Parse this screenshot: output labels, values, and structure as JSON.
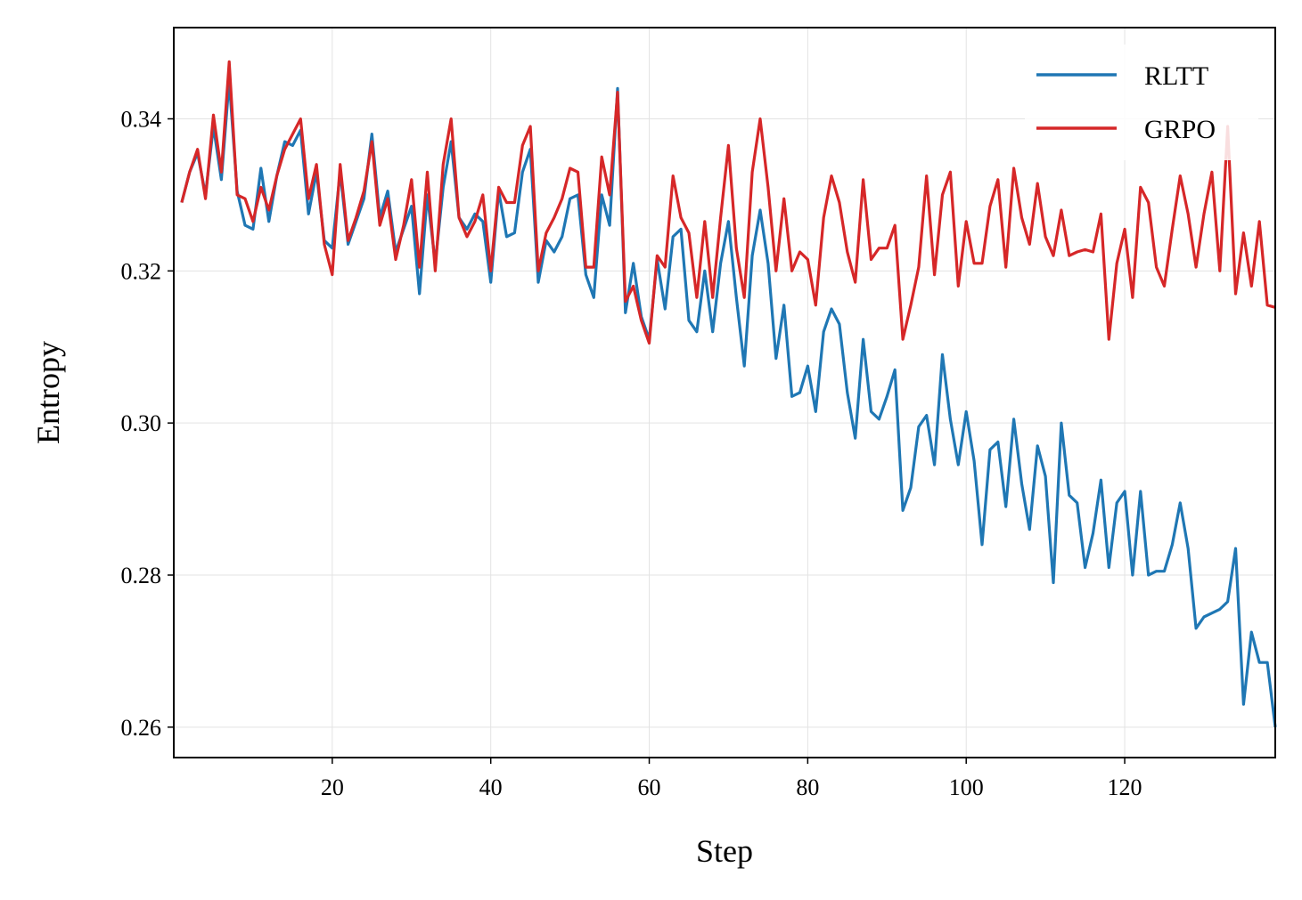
{
  "chart_data": {
    "type": "line",
    "title": "",
    "xlabel": "Step",
    "ylabel": "Entropy",
    "xlim": [
      0,
      139
    ],
    "ylim": [
      0.256,
      0.352
    ],
    "xticks": [
      20,
      40,
      60,
      80,
      100,
      120
    ],
    "xtick_labels": [
      "20",
      "40",
      "60",
      "80",
      "100",
      "120"
    ],
    "yticks": [
      0.26,
      0.28,
      0.3,
      0.32,
      0.34
    ],
    "ytick_labels": [
      "0.26",
      "0.28",
      "0.30",
      "0.32",
      "0.34"
    ],
    "grid": true,
    "legend": "top-right",
    "x_start": 1,
    "series": [
      {
        "name": "RLTT",
        "color": "#1f77b4",
        "values": [
          0.329,
          0.333,
          0.3355,
          0.33,
          0.339,
          0.332,
          0.345,
          0.3305,
          0.326,
          0.3255,
          0.3335,
          0.3265,
          0.3325,
          0.337,
          0.3365,
          0.3385,
          0.3275,
          0.333,
          0.324,
          0.323,
          0.333,
          0.3235,
          0.3265,
          0.3295,
          0.338,
          0.327,
          0.3305,
          0.3225,
          0.3255,
          0.3285,
          0.317,
          0.33,
          0.321,
          0.331,
          0.337,
          0.327,
          0.3255,
          0.3275,
          0.3265,
          0.3185,
          0.3305,
          0.3245,
          0.325,
          0.333,
          0.336,
          0.3185,
          0.324,
          0.3225,
          0.3245,
          0.3295,
          0.33,
          0.3195,
          0.3165,
          0.33,
          0.326,
          0.344,
          0.3145,
          0.321,
          0.314,
          0.311,
          0.3215,
          0.315,
          0.3245,
          0.3255,
          0.3135,
          0.312,
          0.32,
          0.312,
          0.321,
          0.3265,
          0.3165,
          0.3075,
          0.322,
          0.328,
          0.321,
          0.3085,
          0.3155,
          0.3035,
          0.304,
          0.3075,
          0.3015,
          0.312,
          0.315,
          0.313,
          0.304,
          0.298,
          0.311,
          0.3015,
          0.3005,
          0.3035,
          0.307,
          0.2885,
          0.2915,
          0.2995,
          0.301,
          0.2945,
          0.309,
          0.3005,
          0.2945,
          0.3015,
          0.295,
          0.284,
          0.2965,
          0.2975,
          0.289,
          0.3005,
          0.292,
          0.286,
          0.297,
          0.293,
          0.279,
          0.3,
          0.2905,
          0.2895,
          0.281,
          0.2855,
          0.2925,
          0.281,
          0.2895,
          0.291,
          0.28,
          0.291,
          0.28,
          0.2805,
          0.2805,
          0.284,
          0.2895,
          0.2835,
          0.273,
          0.2745,
          0.275,
          0.2755,
          0.2765,
          0.2835,
          0.263,
          0.2725,
          0.2685,
          0.2685,
          0.26
        ]
      },
      {
        "name": "GRPO",
        "color": "#d62728",
        "values": [
          0.329,
          0.333,
          0.336,
          0.3295,
          0.3405,
          0.333,
          0.3475,
          0.33,
          0.3295,
          0.3265,
          0.331,
          0.328,
          0.3325,
          0.336,
          0.338,
          0.34,
          0.3295,
          0.334,
          0.3235,
          0.3195,
          0.334,
          0.324,
          0.327,
          0.3305,
          0.337,
          0.326,
          0.3295,
          0.3215,
          0.326,
          0.332,
          0.3205,
          0.333,
          0.32,
          0.334,
          0.34,
          0.327,
          0.3245,
          0.3265,
          0.33,
          0.32,
          0.331,
          0.329,
          0.329,
          0.3365,
          0.339,
          0.32,
          0.325,
          0.327,
          0.3295,
          0.3335,
          0.333,
          0.3205,
          0.3205,
          0.335,
          0.33,
          0.3435,
          0.316,
          0.318,
          0.3135,
          0.3105,
          0.322,
          0.3205,
          0.3325,
          0.327,
          0.325,
          0.3165,
          0.3265,
          0.3165,
          0.327,
          0.3365,
          0.323,
          0.3165,
          0.333,
          0.34,
          0.331,
          0.32,
          0.3295,
          0.32,
          0.3225,
          0.3215,
          0.3155,
          0.327,
          0.3325,
          0.329,
          0.3225,
          0.3185,
          0.332,
          0.3215,
          0.323,
          0.323,
          0.326,
          0.311,
          0.3155,
          0.3205,
          0.3325,
          0.3195,
          0.33,
          0.333,
          0.318,
          0.3265,
          0.321,
          0.321,
          0.3285,
          0.332,
          0.3205,
          0.3335,
          0.327,
          0.3235,
          0.3315,
          0.3245,
          0.322,
          0.328,
          0.322,
          0.3225,
          0.3228,
          0.3225,
          0.3275,
          0.311,
          0.321,
          0.3255,
          0.3165,
          0.331,
          0.329,
          0.3205,
          0.318,
          0.3255,
          0.3325,
          0.3275,
          0.3205,
          0.3275,
          0.333,
          0.32,
          0.339,
          0.317,
          0.325,
          0.318,
          0.3265,
          0.3155,
          0.3152
        ]
      }
    ]
  }
}
